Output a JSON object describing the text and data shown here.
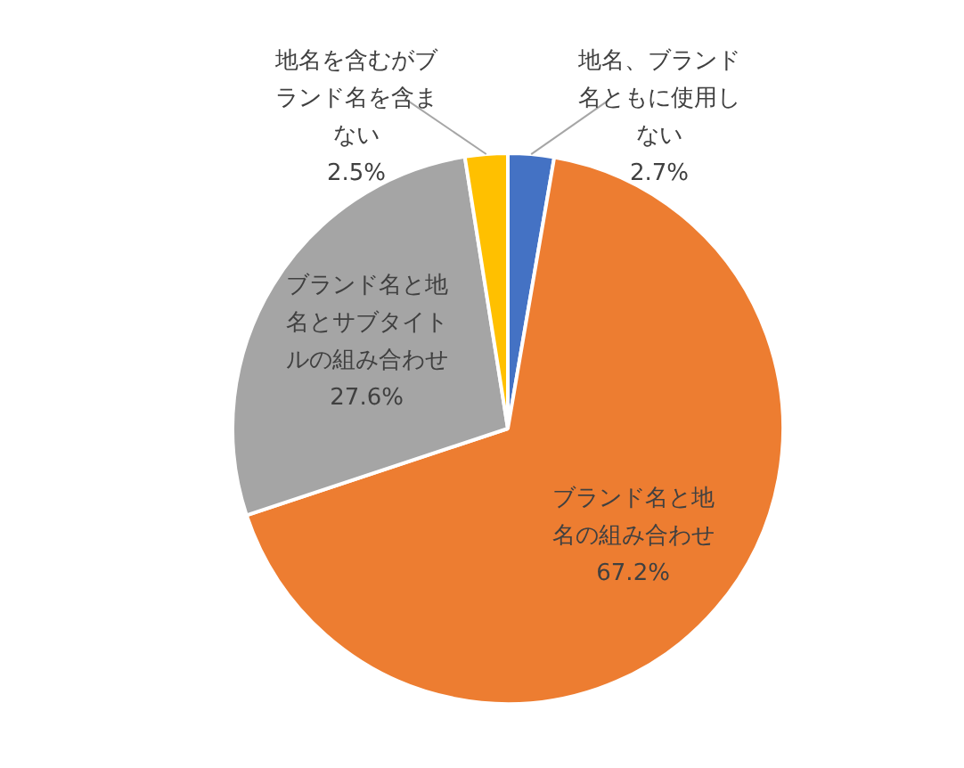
{
  "chart_data": {
    "type": "pie",
    "categories": [
      "地名、ブランド名ともに使用しない",
      "ブランド名と地名の組み合わせ",
      "ブランド名と地名とサブタイトルの組み合わせ",
      "地名を含むがブランド名を含まない"
    ],
    "values": [
      2.7,
      67.2,
      27.6,
      2.5
    ],
    "colors": [
      "#4472c4",
      "#ed7d31",
      "#a5a5a5",
      "#ffc000"
    ],
    "value_labels": [
      "2.7%",
      "67.2%",
      "27.6%",
      "2.5%"
    ],
    "legend": false
  }
}
